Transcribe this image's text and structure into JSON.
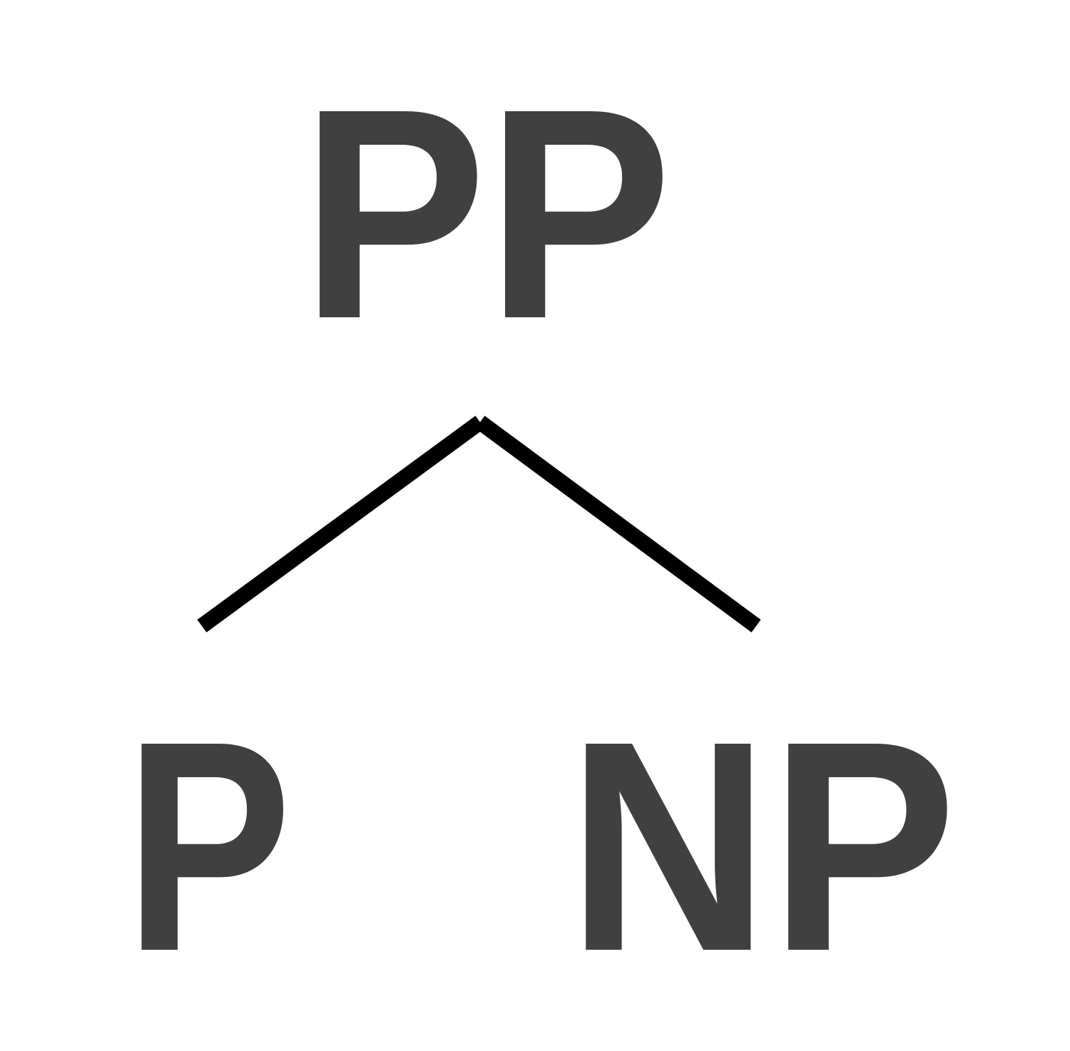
{
  "tree": {
    "root": {
      "label": "PP",
      "children": [
        {
          "label": "P"
        },
        {
          "label": "NP"
        }
      ]
    }
  },
  "colors": {
    "label": "#404040",
    "branch": "#000000",
    "background": "#ffffff"
  }
}
